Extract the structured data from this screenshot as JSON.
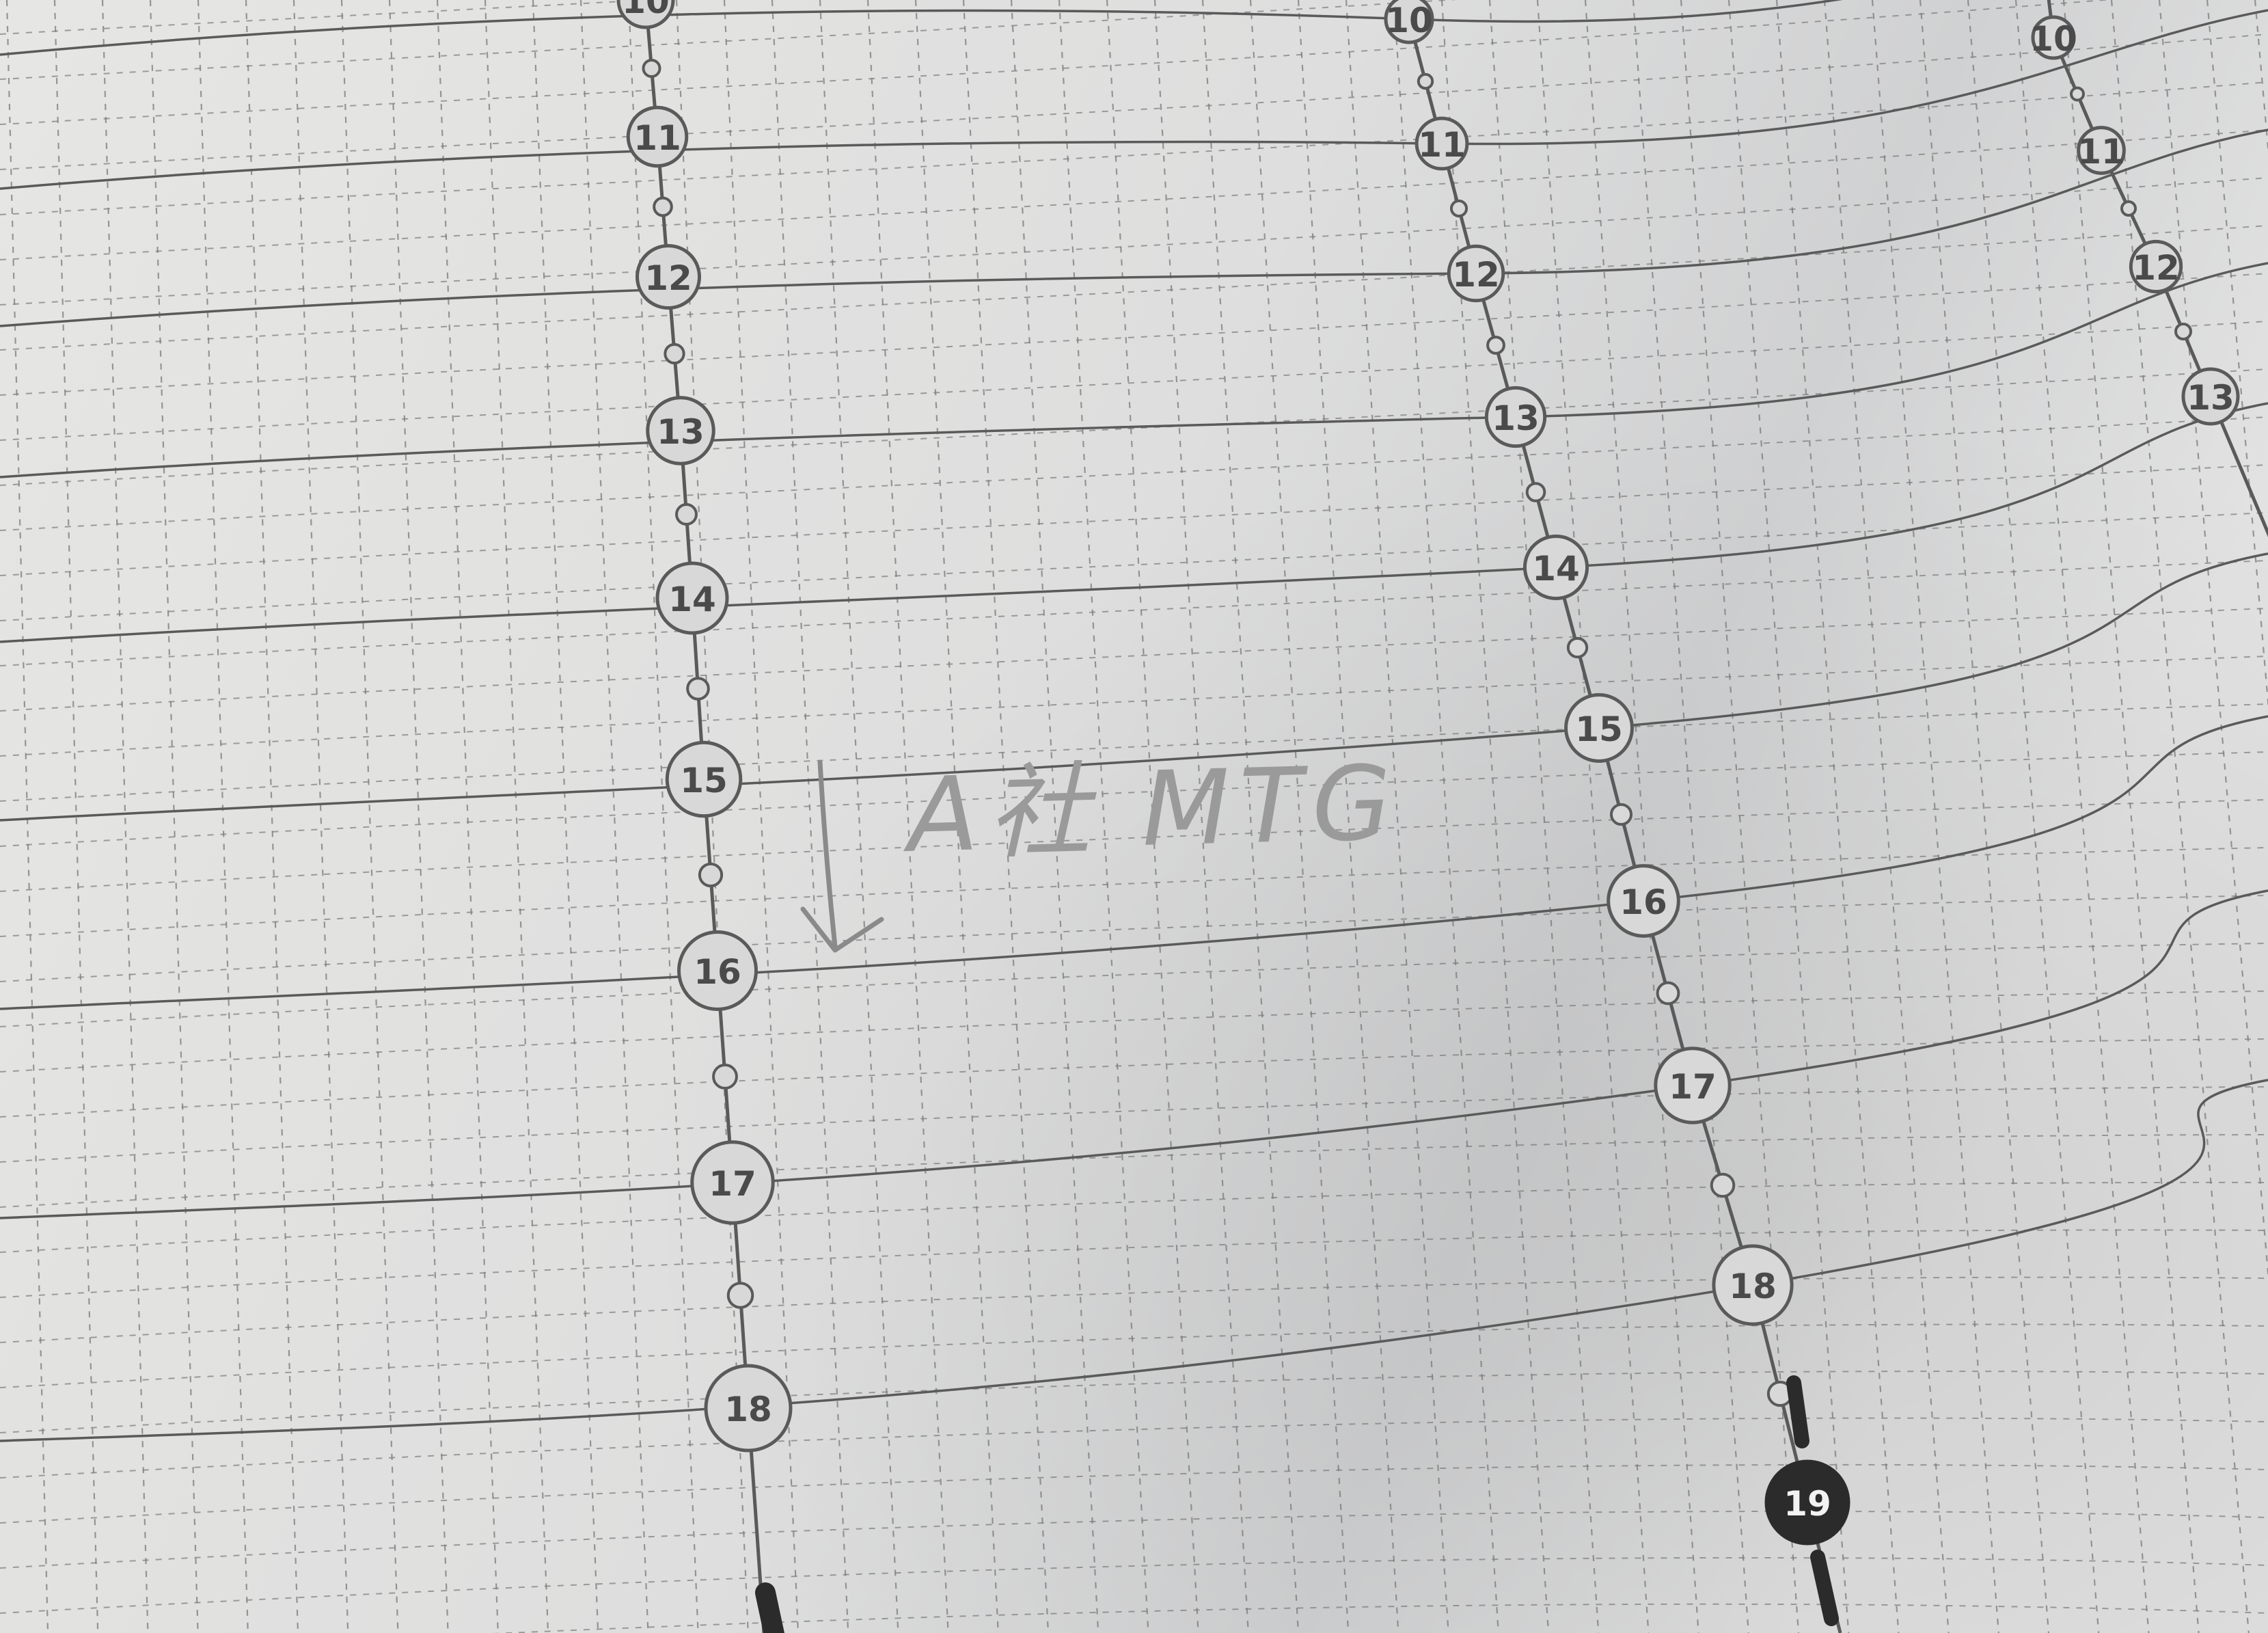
{
  "planner": {
    "columns": [
      {
        "hours": [
          "10",
          "11",
          "12",
          "13",
          "14",
          "15",
          "16",
          "17",
          "18"
        ]
      },
      {
        "hours": [
          "10",
          "11",
          "12",
          "13",
          "14",
          "15",
          "16",
          "17",
          "18",
          "19"
        ]
      },
      {
        "hours": [
          "10",
          "11",
          "12",
          "13"
        ]
      }
    ],
    "highlighted_hour": "19"
  },
  "handwriting": {
    "note": "A社 MTG"
  },
  "colors": {
    "paper": "#e4e4e2",
    "paper_shadow": "#cfd0d0",
    "line": "#5a5a5a",
    "dashed_grid": "#7a7a7a",
    "circle_fill": "#d8d8d8",
    "highlight_fill": "#2b2b2b",
    "pencil": "#8a8a8a"
  }
}
